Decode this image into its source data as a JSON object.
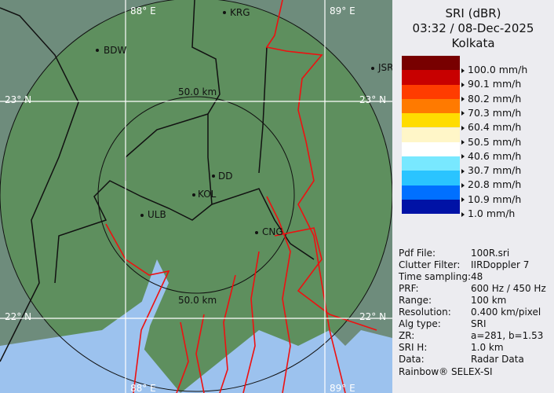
{
  "map": {
    "grid_labels": {
      "lon_left": "88° E",
      "lon_right": "89° E",
      "lat_top": "23° N",
      "lat_bottom": "22° N"
    },
    "range_rings": [
      "50.0 km",
      "50.0 km"
    ],
    "sites": [
      "BDW",
      "KRG",
      "JSR",
      "DD",
      "KOL",
      "ULB",
      "CNG"
    ],
    "colors": {
      "land": "#5e8f5e",
      "outside": "#6e8c7c",
      "sea": "#9cc2ee",
      "rivers": "#ee1010",
      "borders": "#111111",
      "grid": "#ffffff"
    }
  },
  "legend": {
    "product": "SRI (dBR)",
    "datetime": "03:32 / 08-Dec-2025",
    "site": "Kolkata",
    "colors": [
      "#780000",
      "#c80000",
      "#ff3c00",
      "#ff7a00",
      "#ffdc00",
      "#fff6c8",
      "#ffffff",
      "#78e8ff",
      "#2ac4ff",
      "#0070ff",
      "#0012a6"
    ],
    "labels": [
      "100.0 mm/h",
      "90.1 mm/h",
      "80.2 mm/h",
      "70.3 mm/h",
      "60.4 mm/h",
      "50.5 mm/h",
      "40.6 mm/h",
      "30.7 mm/h",
      "20.8 mm/h",
      "10.9 mm/h",
      "1.0 mm/h"
    ]
  },
  "info": [
    {
      "k": "Pdf File:",
      "v": "100R.sri"
    },
    {
      "k": "Clutter Filter:",
      "v": "IIRDoppler 7"
    },
    {
      "k": "Time sampling:",
      "v": "48"
    },
    {
      "k": "PRF:",
      "v": "600 Hz / 450 Hz"
    },
    {
      "k": "Range:",
      "v": "100 km"
    },
    {
      "k": "Resolution:",
      "v": "0.400 km/pixel"
    },
    {
      "k": "Alg type:",
      "v": "SRI"
    },
    {
      "k": "ZR:",
      "v": "a=281, b=1.53"
    },
    {
      "k": "SRI H:",
      "v": "1.0 km"
    },
    {
      "k": "Data:",
      "v": "Radar Data"
    }
  ],
  "footer": "Rainbow® SELEX-SI"
}
